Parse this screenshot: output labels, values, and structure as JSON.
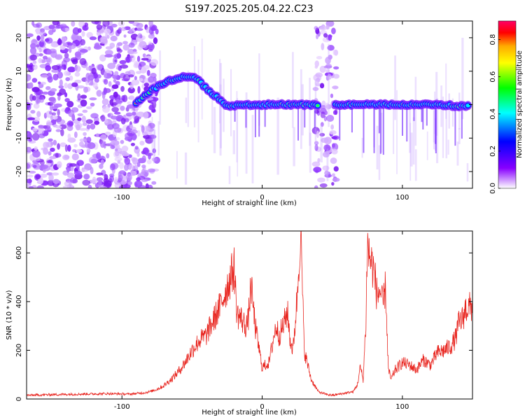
{
  "title": "S197.2025.205.04.22.C23",
  "spectrogram": {
    "xlabel": "Height of straight line (km)",
    "ylabel": "Frequency (Hz)",
    "xlim": [
      -168,
      150
    ],
    "ylim": [
      -25,
      25
    ],
    "xticks": [
      -100,
      0,
      100
    ],
    "yticks": [
      -20,
      -10,
      0,
      10,
      20
    ],
    "colorbar": {
      "label": "Normalized spectral amplitude",
      "range": [
        0.0,
        0.9
      ],
      "ticks": [
        0.0,
        0.2,
        0.4,
        0.6,
        0.8
      ],
      "colormap": [
        "#ff00ff",
        "#ff0000",
        "#ffaa00",
        "#ffff00",
        "#00ff00",
        "#00ffff",
        "#0000ff",
        "#8800ff",
        "#ffffff"
      ]
    },
    "ridge_track": [
      [
        -90,
        0.5
      ],
      [
        -80,
        4
      ],
      [
        -70,
        6.5
      ],
      [
        -60,
        8
      ],
      [
        -50,
        8.5
      ],
      [
        -45,
        7
      ],
      [
        -38,
        4
      ],
      [
        -30,
        1.5
      ],
      [
        -25,
        -0.5
      ],
      [
        -15,
        0
      ],
      [
        0,
        0
      ],
      [
        20,
        0
      ],
      [
        40,
        0
      ],
      [
        55,
        0
      ],
      [
        80,
        0
      ],
      [
        100,
        0
      ],
      [
        120,
        0
      ],
      [
        148,
        -0.5
      ]
    ],
    "track_gaps": [
      [
        40,
        52
      ]
    ],
    "noise_bands": [
      [
        -168,
        -75
      ],
      [
        38,
        53
      ]
    ]
  },
  "chart_data": {
    "type": "line",
    "xlabel": "Height of straight line (km)",
    "ylabel": "SNR (10 * v/v)",
    "xlim": [
      -168,
      150
    ],
    "ylim": [
      0,
      690
    ],
    "xticks": [
      -100,
      0,
      100
    ],
    "yticks": [
      0,
      200,
      400,
      600
    ],
    "color": "#e8251f",
    "series": [
      {
        "x": [
          -168,
          -150,
          -130,
          -110,
          -95,
          -85,
          -80,
          -75,
          -70,
          -65,
          -60,
          -55,
          -50,
          -45,
          -40,
          -35,
          -30,
          -25,
          -20,
          -18,
          -15,
          -12,
          -10,
          -8,
          -5,
          0,
          5,
          8,
          10,
          12,
          15,
          18,
          20,
          22,
          25,
          27,
          28,
          30,
          35,
          40,
          45,
          50,
          55,
          60,
          65,
          68,
          70,
          72,
          74,
          75,
          76,
          78,
          80,
          82,
          84,
          86,
          88,
          90,
          92,
          95,
          100,
          105,
          110,
          115,
          120,
          125,
          130,
          135,
          138,
          140,
          143,
          145,
          150
        ],
        "y": [
          15,
          18,
          20,
          22,
          20,
          25,
          30,
          40,
          55,
          80,
          110,
          150,
          200,
          240,
          260,
          320,
          380,
          460,
          540,
          350,
          330,
          300,
          320,
          470,
          300,
          130,
          150,
          250,
          300,
          260,
          300,
          360,
          240,
          200,
          420,
          660,
          600,
          200,
          80,
          30,
          20,
          15,
          20,
          25,
          30,
          60,
          130,
          80,
          320,
          640,
          600,
          560,
          520,
          420,
          450,
          380,
          460,
          120,
          80,
          120,
          150,
          140,
          120,
          160,
          140,
          190,
          200,
          220,
          250,
          310,
          330,
          370,
          380
        ]
      }
    ]
  }
}
